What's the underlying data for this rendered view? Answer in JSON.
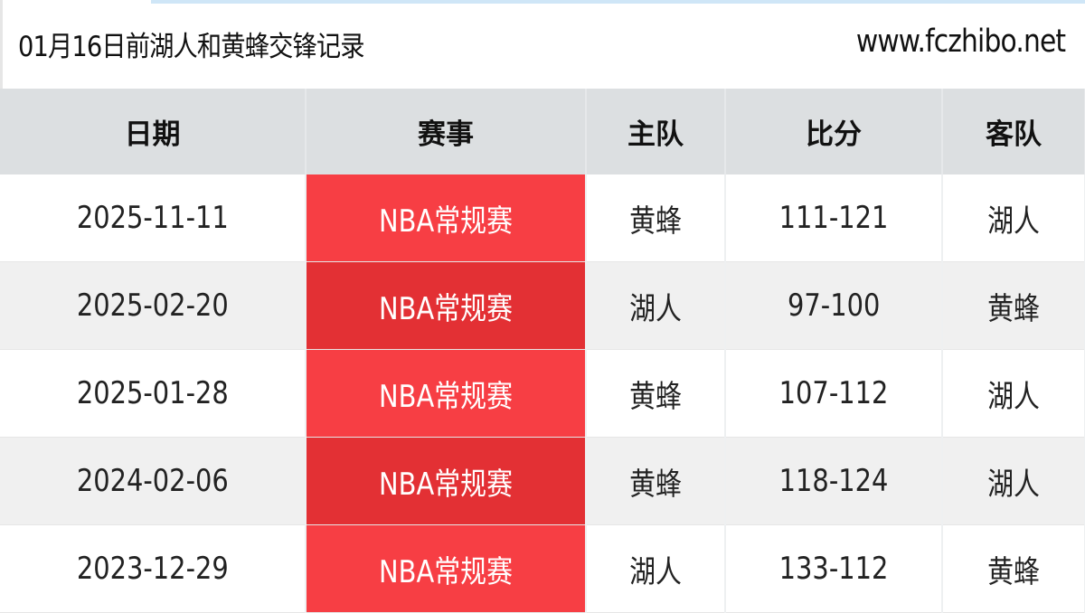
{
  "title": "01月16日前湖人和黄蜂交锋记录",
  "site": "www.fczhibo.net",
  "colors": {
    "competition_bg": "#f73e44",
    "competition_bg_alt": "#e33034",
    "header_bg": "#dcdfe1"
  },
  "columns": [
    "日期",
    "赛事",
    "主队",
    "比分",
    "客队"
  ],
  "rows": [
    {
      "date": "2025-11-11",
      "competition": "NBA常规赛",
      "home": "黄蜂",
      "score": "111-121",
      "away": "湖人"
    },
    {
      "date": "2025-02-20",
      "competition": "NBA常规赛",
      "home": "湖人",
      "score": "97-100",
      "away": "黄蜂"
    },
    {
      "date": "2025-01-28",
      "competition": "NBA常规赛",
      "home": "黄蜂",
      "score": "107-112",
      "away": "湖人"
    },
    {
      "date": "2024-02-06",
      "competition": "NBA常规赛",
      "home": "黄蜂",
      "score": "118-124",
      "away": "湖人"
    },
    {
      "date": "2023-12-29",
      "competition": "NBA常规赛",
      "home": "湖人",
      "score": "133-112",
      "away": "黄蜂"
    }
  ]
}
